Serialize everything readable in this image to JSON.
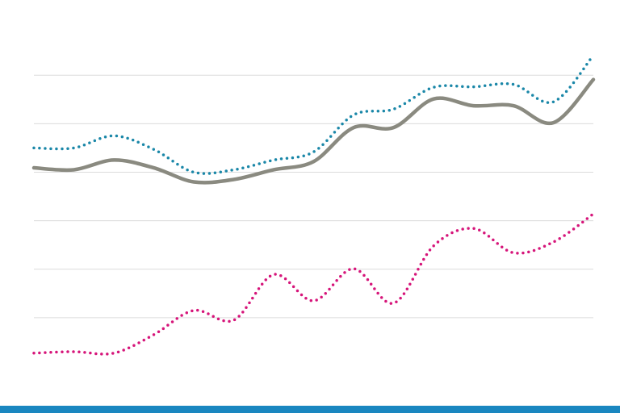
{
  "chart_data": {
    "type": "line",
    "x": [
      0,
      1,
      2,
      3,
      4,
      5,
      6,
      7,
      8,
      9,
      10,
      11,
      12,
      13,
      14
    ],
    "xlim": [
      0,
      14
    ],
    "ylim": [
      0,
      7.5
    ],
    "yticks": [
      1,
      2,
      3,
      4,
      5,
      6
    ],
    "grid": true,
    "smooth": true,
    "series": [
      {
        "color": "#8a8a80",
        "style": "solid",
        "values": [
          4.09,
          4.05,
          4.25,
          4.09,
          3.8,
          3.85,
          4.05,
          4.22,
          4.92,
          4.92,
          5.51,
          5.37,
          5.37,
          5.02,
          5.91
        ]
      },
      {
        "color": "#1a87a8",
        "style": "dotted",
        "values": [
          4.5,
          4.5,
          4.75,
          4.47,
          4.0,
          4.05,
          4.25,
          4.42,
          5.18,
          5.3,
          5.75,
          5.76,
          5.81,
          5.45,
          6.41
        ]
      },
      {
        "color": "#d6157a",
        "style": "dotted",
        "values": [
          0.27,
          0.3,
          0.27,
          0.65,
          1.15,
          0.95,
          1.89,
          1.35,
          2.01,
          1.3,
          2.48,
          2.84,
          2.34,
          2.56,
          3.14
        ]
      }
    ]
  }
}
